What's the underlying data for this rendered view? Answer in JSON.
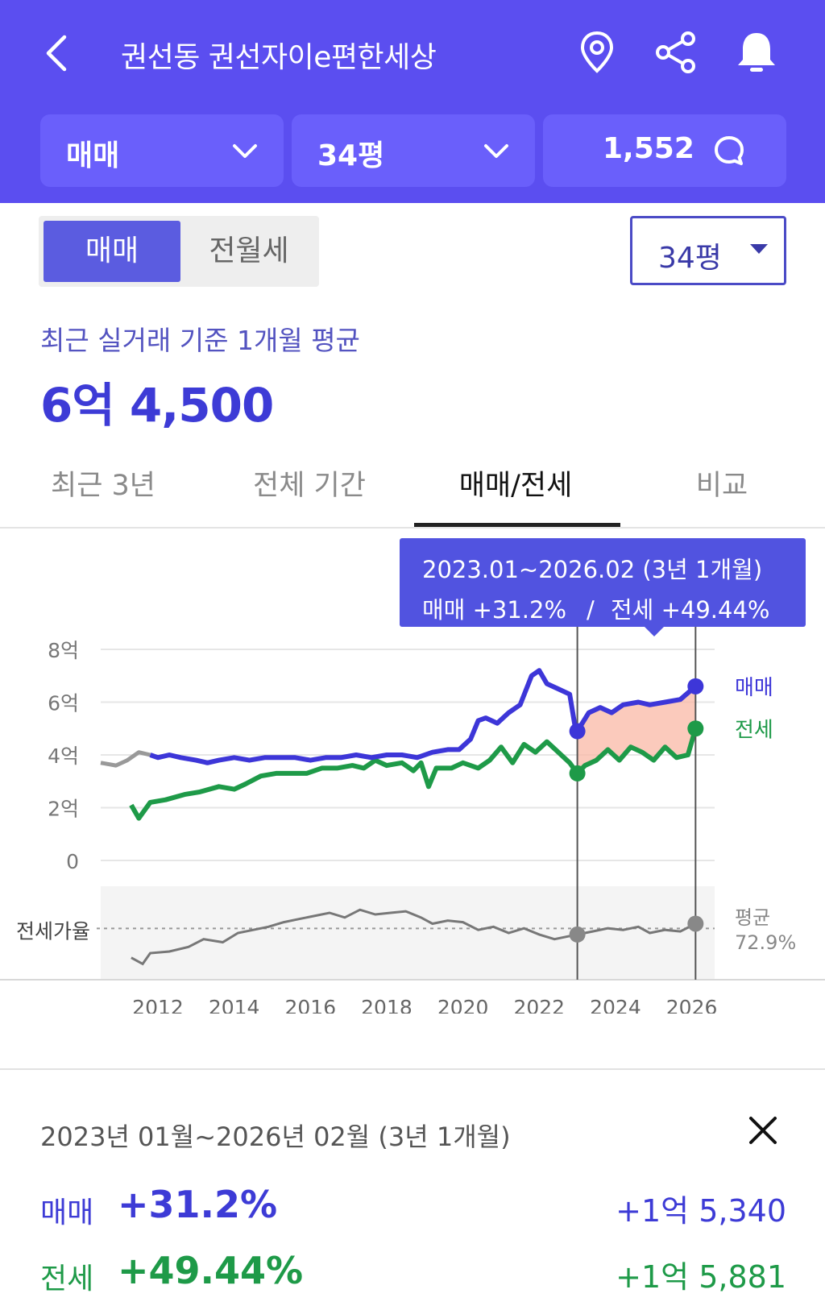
{
  "header": {
    "title": "권선동 권선자이e편한세상",
    "type_select": "매매",
    "size_select": "34평",
    "comment_count": "1,552"
  },
  "toggle": {
    "sale": "매매",
    "rent": "전월세",
    "active": "매매"
  },
  "size_dropdown": "34평",
  "average": {
    "caption": "최근 실거래 기준 1개월 평균",
    "price": "6억 4,500"
  },
  "tabs": [
    {
      "label": "최근 3년",
      "active": false
    },
    {
      "label": "전체 기간",
      "active": false
    },
    {
      "label": "매매/전세",
      "active": true
    },
    {
      "label": "비교",
      "active": false
    }
  ],
  "tooltip": {
    "period": "2023.01~2026.02 (3년 1개월)",
    "sale_label": "매매 +31.2%",
    "separator": "/",
    "rent_label": "전세 +49.44%"
  },
  "chart_data": {
    "type": "line",
    "y_ticks": [
      {
        "value": 8,
        "label": "8억"
      },
      {
        "value": 6,
        "label": "6억"
      },
      {
        "value": 4,
        "label": "4억"
      },
      {
        "value": 2,
        "label": "2억"
      },
      {
        "value": 0,
        "label": "0"
      }
    ],
    "ylim": [
      0,
      8
    ],
    "x_ticks": [
      "2012",
      "2014",
      "2016",
      "2018",
      "2020",
      "2022",
      "2024",
      "2026"
    ],
    "xlim": [
      2010.5,
      2026.6
    ],
    "lower_panel_label": "전세가율",
    "lower_panel_avg_label": "평균",
    "lower_panel_avg_value": "72.9%",
    "lower_panel_avg": 72.9,
    "lower_panel_range": [
      45,
      95
    ],
    "highlight": {
      "start": 2023.0,
      "end": 2026.1
    },
    "colors": {
      "sale": "#3d36d8",
      "rent": "#1e9a48",
      "ratio": "#777777",
      "highlight": "#f9b8a6"
    },
    "series": [
      {
        "name": "매매",
        "points": [
          [
            2010.5,
            3.7
          ],
          [
            2010.9,
            3.6
          ],
          [
            2011.2,
            3.8
          ],
          [
            2011.5,
            4.1
          ],
          [
            2011.8,
            4.0
          ],
          [
            2012.0,
            3.9
          ],
          [
            2012.3,
            4.0
          ],
          [
            2012.6,
            3.9
          ],
          [
            2013.0,
            3.8
          ],
          [
            2013.3,
            3.7
          ],
          [
            2013.6,
            3.8
          ],
          [
            2014.0,
            3.9
          ],
          [
            2014.4,
            3.8
          ],
          [
            2014.8,
            3.9
          ],
          [
            2015.2,
            3.9
          ],
          [
            2015.6,
            3.9
          ],
          [
            2016.0,
            3.8
          ],
          [
            2016.4,
            3.9
          ],
          [
            2016.8,
            3.9
          ],
          [
            2017.2,
            4.0
          ],
          [
            2017.6,
            3.9
          ],
          [
            2018.0,
            4.0
          ],
          [
            2018.4,
            4.0
          ],
          [
            2018.8,
            3.9
          ],
          [
            2019.2,
            4.1
          ],
          [
            2019.6,
            4.2
          ],
          [
            2019.9,
            4.2
          ],
          [
            2020.2,
            4.6
          ],
          [
            2020.4,
            5.3
          ],
          [
            2020.6,
            5.4
          ],
          [
            2020.9,
            5.2
          ],
          [
            2021.2,
            5.6
          ],
          [
            2021.5,
            5.9
          ],
          [
            2021.8,
            7.0
          ],
          [
            2022.0,
            7.2
          ],
          [
            2022.2,
            6.7
          ],
          [
            2022.5,
            6.5
          ],
          [
            2022.8,
            6.3
          ],
          [
            2022.95,
            5.0
          ],
          [
            2023.0,
            4.9
          ],
          [
            2023.3,
            5.6
          ],
          [
            2023.6,
            5.8
          ],
          [
            2023.9,
            5.6
          ],
          [
            2024.2,
            5.9
          ],
          [
            2024.6,
            6.0
          ],
          [
            2024.9,
            5.9
          ],
          [
            2025.3,
            6.0
          ],
          [
            2025.7,
            6.1
          ],
          [
            2026.1,
            6.6
          ]
        ]
      },
      {
        "name": "전세",
        "points": [
          [
            2011.3,
            2.1
          ],
          [
            2011.5,
            1.6
          ],
          [
            2011.8,
            2.2
          ],
          [
            2012.2,
            2.3
          ],
          [
            2012.7,
            2.5
          ],
          [
            2013.1,
            2.6
          ],
          [
            2013.6,
            2.8
          ],
          [
            2014.0,
            2.7
          ],
          [
            2014.3,
            2.9
          ],
          [
            2014.7,
            3.2
          ],
          [
            2015.1,
            3.3
          ],
          [
            2015.5,
            3.3
          ],
          [
            2015.9,
            3.3
          ],
          [
            2016.3,
            3.5
          ],
          [
            2016.7,
            3.5
          ],
          [
            2017.1,
            3.6
          ],
          [
            2017.4,
            3.5
          ],
          [
            2017.7,
            3.8
          ],
          [
            2018.0,
            3.6
          ],
          [
            2018.4,
            3.7
          ],
          [
            2018.7,
            3.4
          ],
          [
            2018.9,
            3.7
          ],
          [
            2019.1,
            2.8
          ],
          [
            2019.3,
            3.5
          ],
          [
            2019.7,
            3.5
          ],
          [
            2020.0,
            3.7
          ],
          [
            2020.4,
            3.5
          ],
          [
            2020.7,
            3.8
          ],
          [
            2021.0,
            4.3
          ],
          [
            2021.3,
            3.7
          ],
          [
            2021.6,
            4.4
          ],
          [
            2021.9,
            4.1
          ],
          [
            2022.2,
            4.5
          ],
          [
            2022.5,
            4.1
          ],
          [
            2022.8,
            3.7
          ],
          [
            2023.0,
            3.3
          ],
          [
            2023.2,
            3.6
          ],
          [
            2023.5,
            3.8
          ],
          [
            2023.8,
            4.2
          ],
          [
            2024.1,
            3.8
          ],
          [
            2024.4,
            4.3
          ],
          [
            2024.7,
            4.1
          ],
          [
            2025.0,
            3.8
          ],
          [
            2025.3,
            4.3
          ],
          [
            2025.6,
            3.9
          ],
          [
            2025.9,
            4.0
          ],
          [
            2026.1,
            5.0
          ]
        ]
      },
      {
        "name": "전세가율",
        "points": [
          [
            2011.3,
            54
          ],
          [
            2011.6,
            50
          ],
          [
            2011.8,
            57
          ],
          [
            2012.3,
            58
          ],
          [
            2012.8,
            61
          ],
          [
            2013.2,
            66
          ],
          [
            2013.7,
            64
          ],
          [
            2014.1,
            70
          ],
          [
            2014.5,
            72
          ],
          [
            2014.9,
            74
          ],
          [
            2015.3,
            77
          ],
          [
            2015.7,
            79
          ],
          [
            2016.1,
            81
          ],
          [
            2016.5,
            83
          ],
          [
            2016.9,
            80
          ],
          [
            2017.3,
            85
          ],
          [
            2017.7,
            82
          ],
          [
            2018.1,
            83
          ],
          [
            2018.5,
            84
          ],
          [
            2018.9,
            80
          ],
          [
            2019.2,
            76
          ],
          [
            2019.6,
            78
          ],
          [
            2020.0,
            77
          ],
          [
            2020.4,
            72
          ],
          [
            2020.8,
            74
          ],
          [
            2021.2,
            70
          ],
          [
            2021.6,
            73
          ],
          [
            2022.0,
            69
          ],
          [
            2022.4,
            66
          ],
          [
            2022.8,
            68
          ],
          [
            2023.0,
            69
          ],
          [
            2023.4,
            71
          ],
          [
            2023.8,
            73
          ],
          [
            2024.2,
            72
          ],
          [
            2024.6,
            74
          ],
          [
            2024.9,
            70
          ],
          [
            2025.3,
            72
          ],
          [
            2025.7,
            71
          ],
          [
            2026.1,
            76
          ]
        ]
      }
    ],
    "end_labels": {
      "sale": "매매",
      "rent": "전세"
    }
  },
  "summary": {
    "period": "2023년 01월~2026년 02월 (3년 1개월)",
    "rows": [
      {
        "name": "매매",
        "percent": "+31.2%",
        "amount": "+1억 5,340"
      },
      {
        "name": "전세",
        "percent": "+49.44%",
        "amount": "+1억 5,881"
      }
    ]
  }
}
